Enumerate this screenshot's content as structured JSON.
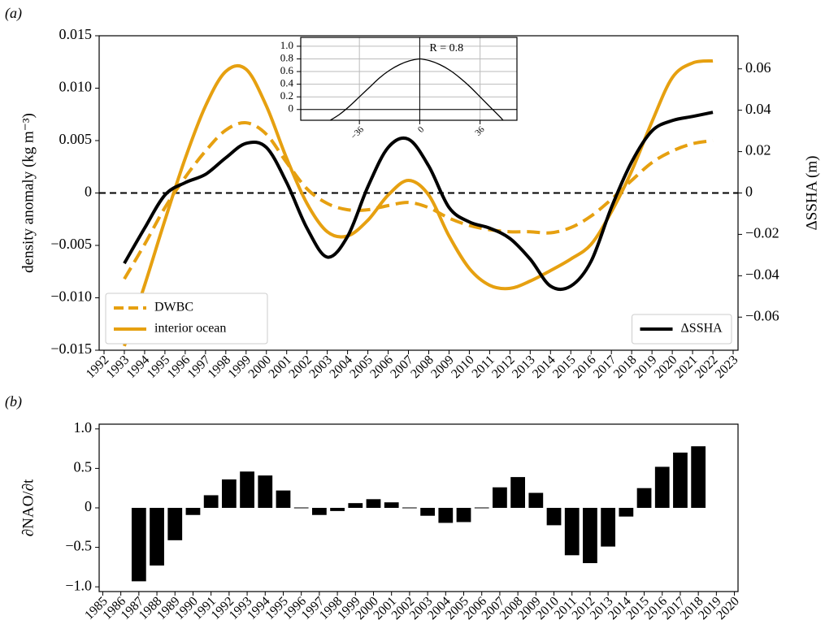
{
  "chart_data": [
    {
      "type": "line",
      "panel_label": "(a)",
      "ylabel": "density anomaly (kg m⁻³)",
      "y2label": "ΔSSHA (m)",
      "x": [
        1993,
        1994,
        1995,
        1996,
        1997,
        1998,
        1999,
        2000,
        2001,
        2002,
        2003,
        2004,
        2005,
        2006,
        2007,
        2008,
        2009,
        2010,
        2011,
        2012,
        2013,
        2014,
        2015,
        2016,
        2017,
        2018,
        2019,
        2020,
        2021,
        2022
      ],
      "xlim": [
        1991.76,
        2023.24
      ],
      "xticks": [
        1992,
        1993,
        1994,
        1995,
        1996,
        1997,
        1998,
        1999,
        2000,
        2001,
        2002,
        2003,
        2004,
        2005,
        2006,
        2007,
        2008,
        2009,
        2010,
        2011,
        2012,
        2013,
        2014,
        2015,
        2016,
        2017,
        2018,
        2019,
        2020,
        2021,
        2022,
        2023
      ],
      "ylim": [
        -0.015,
        0.015
      ],
      "yticks": [
        {
          "value": -0.015,
          "label": "−0.015"
        },
        {
          "value": -0.01,
          "label": "−0.010"
        },
        {
          "value": -0.005,
          "label": "−0.005"
        },
        0,
        0.005,
        {
          "value": 0.01,
          "label": "0.010"
        },
        0.015
      ],
      "y2lim": [
        -0.076,
        0.076
      ],
      "y2ticks": [
        {
          "value": -0.06,
          "label": "−0.06"
        },
        {
          "value": -0.04,
          "label": "−0.04"
        },
        {
          "value": -0.02,
          "label": "−0.02"
        },
        0,
        0.02,
        0.04,
        0.06
      ],
      "zero_line": true,
      "series": [
        {
          "name": "DWBC",
          "color": "#e6a010",
          "dash": true,
          "legend": "lower left",
          "values": [
            -0.0082,
            -0.0049,
            -0.0014,
            0.0015,
            0.004,
            0.006,
            0.0067,
            0.0056,
            0.0029,
            0.0004,
            -0.001,
            -0.0016,
            -0.0016,
            -0.0012,
            -0.0009,
            -0.0014,
            -0.0024,
            -0.0031,
            -0.0035,
            -0.0037,
            -0.0037,
            -0.0038,
            -0.0033,
            -0.0022,
            -0.0006,
            0.0012,
            0.0029,
            0.004,
            0.0047,
            0.005
          ]
        },
        {
          "name": "interior ocean",
          "color": "#e6a010",
          "legend": "lower left",
          "values": [
            -0.0146,
            -0.0088,
            -0.0026,
            0.0033,
            0.0083,
            0.0116,
            0.0118,
            0.0083,
            0.0033,
            -0.001,
            -0.0037,
            -0.0041,
            -0.0026,
            -0.0002,
            0.0012,
            -0.0002,
            -0.0041,
            -0.0072,
            -0.0088,
            -0.0091,
            -0.0084,
            -0.0074,
            -0.0063,
            -0.0049,
            -0.0018,
            0.0021,
            0.0068,
            0.011,
            0.0124,
            0.0126
          ]
        },
        {
          "name": "ΔSSHA",
          "color": "#000000",
          "axis": "y2",
          "legend": "lower right",
          "values": [
            -0.034,
            -0.017,
            -0.001,
            0.005,
            0.009,
            0.017,
            0.024,
            0.022,
            0.005,
            -0.017,
            -0.031,
            -0.021,
            0.003,
            0.022,
            0.026,
            0.013,
            -0.007,
            -0.014,
            -0.017,
            -0.022,
            -0.032,
            -0.045,
            -0.045,
            -0.033,
            -0.007,
            0.015,
            0.03,
            0.035,
            0.037,
            0.039
          ]
        }
      ]
    },
    {
      "type": "line",
      "annotation": "R = 0.8",
      "color": "#000000",
      "grid": true,
      "x": [
        -54,
        -48,
        -42,
        -36,
        -30,
        -24,
        -18,
        -12,
        -6,
        0,
        6,
        12,
        18,
        24,
        30,
        36,
        42,
        48,
        50
      ],
      "values": [
        -0.18,
        -0.08,
        0.05,
        0.2,
        0.35,
        0.5,
        0.62,
        0.71,
        0.77,
        0.8,
        0.77,
        0.71,
        0.62,
        0.5,
        0.36,
        0.2,
        0.04,
        -0.12,
        -0.18
      ],
      "xlim": [
        -71,
        58
      ],
      "xticks": [
        {
          "value": -36,
          "label": "−36"
        },
        0,
        36
      ],
      "ylim": [
        -0.17,
        1.14
      ],
      "yticks": [
        0,
        0.2,
        0.4,
        0.6,
        0.8,
        {
          "value": 1,
          "label": "1.0"
        }
      ]
    },
    {
      "type": "bar",
      "panel_label": "(b)",
      "ylabel": "∂NAO/∂t",
      "color": "#000000",
      "x": [
        1987,
        1988,
        1989,
        1990,
        1991,
        1992,
        1993,
        1994,
        1995,
        1996,
        1997,
        1998,
        1999,
        2000,
        2001,
        2002,
        2003,
        2004,
        2005,
        2006,
        2007,
        2008,
        2009,
        2010,
        2011,
        2012,
        2013,
        2014,
        2015,
        2016,
        2017,
        2018
      ],
      "values": [
        -0.93,
        -0.73,
        -0.41,
        -0.09,
        0.16,
        0.36,
        0.46,
        0.41,
        0.22,
        0.005,
        -0.09,
        -0.04,
        0.06,
        0.11,
        0.07,
        0.005,
        -0.1,
        -0.19,
        -0.18,
        0.005,
        0.26,
        0.39,
        0.19,
        -0.22,
        -0.6,
        -0.7,
        -0.49,
        -0.11,
        0.25,
        0.52,
        0.7,
        0.78
      ],
      "xlim": [
        1984.8,
        2020.2
      ],
      "xticks": [
        1985,
        1986,
        1987,
        1988,
        1989,
        1990,
        1991,
        1992,
        1993,
        1994,
        1995,
        1996,
        1997,
        1998,
        1999,
        2000,
        2001,
        2002,
        2003,
        2004,
        2005,
        2006,
        2007,
        2008,
        2009,
        2010,
        2011,
        2012,
        2013,
        2014,
        2015,
        2016,
        2017,
        2018,
        2019,
        2020
      ],
      "ylim": [
        -1.06,
        1.06
      ],
      "yticks": [
        {
          "value": -1,
          "label": "−1.0"
        },
        {
          "value": -0.5,
          "label": "−0.5"
        },
        0,
        0.5,
        {
          "value": 1,
          "label": "1.0"
        }
      ]
    }
  ]
}
